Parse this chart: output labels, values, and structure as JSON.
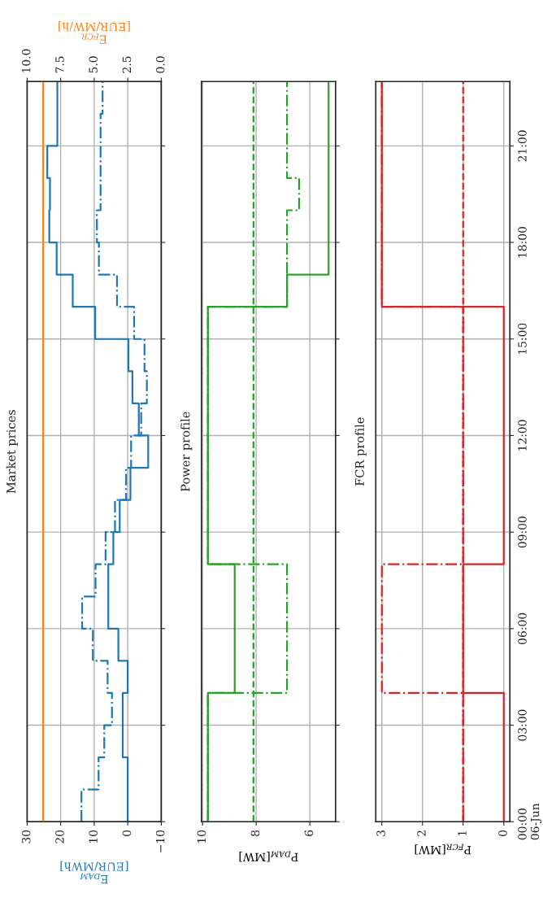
{
  "chart_data": [
    {
      "type": "step",
      "orientation": "horizontal",
      "title": "Market prices",
      "xlabel": "E$_{DAM}$\n[EUR/MWh]",
      "x2label": "E$_{FCR}$\n[EUR/MW/h]",
      "x": [
        0,
        1,
        2,
        3,
        4,
        5,
        6,
        7,
        8,
        9,
        10,
        11,
        12,
        13,
        14,
        15,
        16,
        17,
        18,
        19,
        20,
        21,
        22,
        23
      ],
      "series": [
        {
          "color": "#1f77b4",
          "line_style": "solid",
          "values": [
            0,
            0,
            1.5,
            1.5,
            0,
            2.8,
            5.8,
            5.8,
            4.3,
            2.4,
            -0.8,
            -6.1,
            -3.3,
            -1.4,
            -0.2,
            9.7,
            16.4,
            21.2,
            23.4,
            23.2,
            24,
            21,
            21,
            21
          ]
        },
        {
          "color": "#1f77b4",
          "line_style": "dashdot",
          "values": [
            13.8,
            8.7,
            7.0,
            4.7,
            6.0,
            10.4,
            13.6,
            9.6,
            6.6,
            3.8,
            0.5,
            -1.0,
            -4.0,
            -5.7,
            -5.0,
            -1.9,
            3.2,
            8.6,
            9.2,
            8.1,
            8.1,
            8.1,
            7.5,
            7.5
          ]
        }
      ],
      "ref_lines": [
        {
          "axis": "x2",
          "value": 8.8,
          "color": "#ff7f0e",
          "line_style": "solid"
        }
      ],
      "ylim": [
        0,
        23
      ],
      "yticks": [
        {
          "value": 0,
          "label": null
        },
        {
          "value": 3,
          "label": null
        },
        {
          "value": 6,
          "label": null
        },
        {
          "value": 9,
          "label": null
        },
        {
          "value": 12,
          "label": null
        },
        {
          "value": 15,
          "label": null
        },
        {
          "value": 18,
          "label": null
        },
        {
          "value": 21,
          "label": null
        }
      ],
      "xlim": [
        30,
        -10
      ],
      "xticks": [
        {
          "value": -10,
          "label": "−10"
        },
        0,
        10,
        20,
        30
      ],
      "x2lim": [
        10,
        0
      ],
      "x2ticks": [
        {
          "value": 0,
          "label": "0.0"
        },
        2.5,
        {
          "value": 5,
          "label": "5.0"
        },
        7.5,
        {
          "value": 10,
          "label": "10.0"
        }
      ],
      "grid": true,
      "tick_labels": "x"
    },
    {
      "type": "step",
      "orientation": "horizontal",
      "title": "Power profile",
      "xlabel": "P$_{DAM}$[MW]",
      "x": [
        0,
        1,
        2,
        3,
        4,
        5,
        6,
        7,
        8,
        9,
        10,
        11,
        12,
        13,
        14,
        15,
        16,
        17,
        18,
        19,
        20,
        21,
        22,
        23
      ],
      "series": [
        {
          "color": "#2ca02c",
          "line_style": "solid",
          "values": [
            9.8,
            9.8,
            9.8,
            9.8,
            8.8,
            8.8,
            8.8,
            8.8,
            9.8,
            9.8,
            9.8,
            9.8,
            9.8,
            9.8,
            9.8,
            9.8,
            6.85,
            5.3,
            5.3,
            5.3,
            5.3,
            5.3,
            5.3,
            5.3
          ]
        },
        {
          "color": "#2ca02c",
          "line_style": "dashdot",
          "values": [
            9.8,
            9.8,
            9.8,
            9.8,
            6.85,
            6.85,
            6.85,
            6.85,
            9.8,
            9.8,
            9.8,
            9.8,
            9.8,
            9.8,
            9.8,
            9.8,
            6.85,
            6.85,
            6.85,
            6.4,
            6.85,
            6.85,
            6.85,
            6.85
          ]
        }
      ],
      "ref_lines": [
        {
          "axis": "x",
          "value": 8.1,
          "color": "#2ca02c",
          "line_style": "dashed"
        }
      ],
      "ylim": [
        0,
        23
      ],
      "yticks": [
        {
          "value": 0,
          "label": null
        },
        {
          "value": 3,
          "label": null
        },
        {
          "value": 6,
          "label": null
        },
        {
          "value": 9,
          "label": null
        },
        {
          "value": 12,
          "label": null
        },
        {
          "value": 15,
          "label": null
        },
        {
          "value": 18,
          "label": null
        },
        {
          "value": 21,
          "label": null
        }
      ],
      "xlim": [
        10.04,
        5.04
      ],
      "xticks": [
        6,
        8,
        10
      ],
      "grid": true,
      "tick_labels": "x"
    },
    {
      "type": "step",
      "orientation": "horizontal",
      "title": "FCR profile",
      "xlabel": "P$_{FCR}$[MW]",
      "x": [
        0,
        1,
        2,
        3,
        4,
        5,
        6,
        7,
        8,
        9,
        10,
        11,
        12,
        13,
        14,
        15,
        16,
        17,
        18,
        19,
        20,
        21,
        22,
        23
      ],
      "series": [
        {
          "color": "#d62728",
          "line_style": "solid",
          "values": [
            0,
            0,
            0,
            0,
            1,
            1,
            1,
            1,
            0,
            0,
            0,
            0,
            0,
            0,
            0,
            0,
            3,
            3,
            3,
            3,
            3,
            3,
            3,
            3
          ]
        },
        {
          "color": "#d62728",
          "line_style": "dashdot",
          "values": [
            1,
            1,
            1,
            1,
            3,
            3,
            3,
            3,
            1,
            1,
            1,
            1,
            1,
            1,
            1,
            1,
            3,
            3,
            3,
            3,
            3,
            3,
            3,
            3
          ]
        }
      ],
      "ref_lines": [
        {
          "axis": "x",
          "value": 1,
          "color": "#d62728",
          "line_style": "dashed"
        }
      ],
      "ylim": [
        0,
        23
      ],
      "yticks": [
        {
          "value": 0,
          "label": "00:00\n06-Jun"
        },
        {
          "value": 3,
          "label": "03:00"
        },
        {
          "value": 6,
          "label": "06:00"
        },
        {
          "value": 9,
          "label": "09:00"
        },
        {
          "value": 12,
          "label": "12:00"
        },
        {
          "value": 15,
          "label": "15:00"
        },
        {
          "value": 18,
          "label": "18:00"
        },
        {
          "value": 21,
          "label": "21:00"
        }
      ],
      "xlim": [
        3.15,
        -0.15
      ],
      "xticks": [
        0,
        1,
        2,
        3
      ],
      "grid": true
    }
  ]
}
